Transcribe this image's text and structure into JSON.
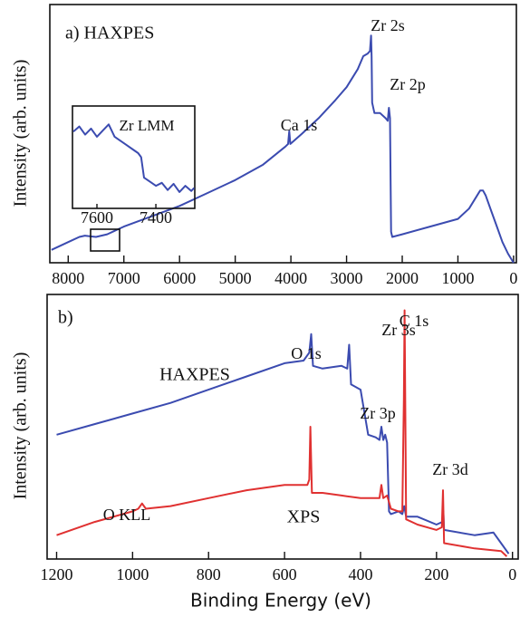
{
  "chart_data": [
    {
      "type": "line",
      "title": "a) HAXPES",
      "ylabel": "Intensity (arb. units)",
      "xlim": [
        8330,
        -50
      ],
      "ylim": [
        0,
        100
      ],
      "xticks": [
        8000,
        7000,
        6000,
        5000,
        4000,
        3000,
        2000,
        1000,
        0
      ],
      "annotations": [
        "Zr 2s",
        "Zr 2p",
        "Ca 1s"
      ],
      "series": [
        {
          "color": "#3b4bb0",
          "x": [
            8300,
            8000,
            7800,
            7700,
            7600,
            7500,
            7300,
            7000,
            6500,
            6000,
            5500,
            5000,
            4500,
            4100,
            4050,
            4030,
            4010,
            3800,
            3500,
            3200,
            3000,
            2800,
            2700,
            2620,
            2580,
            2560,
            2550,
            2540,
            2500,
            2400,
            2300,
            2260,
            2240,
            2220,
            2200,
            2180,
            2000,
            1500,
            1000,
            800,
            600,
            550,
            500,
            400,
            300,
            200,
            100,
            0
          ],
          "values": [
            5,
            8,
            10,
            10.5,
            10.2,
            10,
            11,
            14,
            18,
            22,
            27,
            32,
            38,
            45,
            46,
            51,
            46,
            50,
            56,
            63,
            68,
            75,
            80,
            81,
            82,
            88,
            80,
            62,
            58,
            58,
            56,
            55,
            60,
            56,
            12,
            10,
            11,
            14,
            17,
            21,
            28,
            28,
            26,
            20,
            14,
            8,
            3.5,
            0
          ]
        }
      ]
    },
    {
      "type": "line",
      "title": "Zr LMM",
      "xlim": [
        7683,
        7268
      ],
      "ylim": [
        0,
        100
      ],
      "xticks": [
        7600,
        7400
      ],
      "series": [
        {
          "color": "#3b4bb0",
          "x": [
            7680,
            7660,
            7640,
            7620,
            7600,
            7580,
            7560,
            7540,
            7520,
            7500,
            7480,
            7460,
            7450,
            7440,
            7420,
            7400,
            7380,
            7360,
            7340,
            7320,
            7300,
            7280,
            7270
          ],
          "values": [
            75,
            80,
            72,
            78,
            70,
            76,
            82,
            70,
            66,
            62,
            58,
            54,
            50,
            30,
            26,
            22,
            25,
            18,
            24,
            16,
            22,
            17,
            20
          ]
        }
      ]
    },
    {
      "type": "line",
      "title": "b)",
      "ylabel": "Intensity (arb. units)",
      "xlabel": "Binding Energy (eV)",
      "xlim": [
        1225,
        -15
      ],
      "ylim": [
        0,
        100
      ],
      "xticks": [
        1200,
        1000,
        800,
        600,
        400,
        200,
        0
      ],
      "annotations": [
        "O 1s",
        "Zr 3s",
        "Zr 3p",
        "C 1s",
        "Zr 3d",
        "O KLL"
      ],
      "series": [
        {
          "name": "HAXPES",
          "color": "#3b4bb0",
          "x": [
            1200,
            1100,
            1000,
            900,
            800,
            700,
            600,
            550,
            535,
            530,
            525,
            500,
            450,
            435,
            430,
            425,
            400,
            380,
            360,
            350,
            345,
            340,
            335,
            330,
            325,
            320,
            300,
            290,
            285,
            280,
            250,
            200,
            185,
            182,
            180,
            100,
            50,
            30,
            10
          ],
          "values": [
            47,
            51,
            55,
            59,
            64,
            69,
            74,
            75,
            78,
            85,
            73,
            72,
            73,
            72,
            81,
            66,
            64,
            47,
            46,
            45,
            50,
            45,
            47,
            44,
            18,
            17,
            18,
            17,
            20,
            16,
            16,
            13,
            14,
            18,
            11,
            9,
            10,
            6,
            2
          ]
        },
        {
          "name": "XPS",
          "color": "#e03131",
          "x": [
            1200,
            1100,
            1000,
            985,
            975,
            965,
            900,
            800,
            700,
            600,
            540,
            535,
            532,
            528,
            500,
            450,
            400,
            350,
            345,
            340,
            330,
            320,
            300,
            290,
            286,
            284,
            280,
            250,
            200,
            186,
            183,
            180,
            100,
            30,
            15
          ],
          "values": [
            9,
            14,
            18,
            19,
            21,
            19,
            20,
            23,
            26,
            28,
            28,
            30,
            50,
            25,
            25,
            24,
            23,
            23,
            28,
            23,
            24,
            19,
            18,
            18,
            60,
            94,
            15,
            13,
            11,
            12,
            26,
            6,
            4,
            3,
            1
          ]
        }
      ]
    }
  ]
}
